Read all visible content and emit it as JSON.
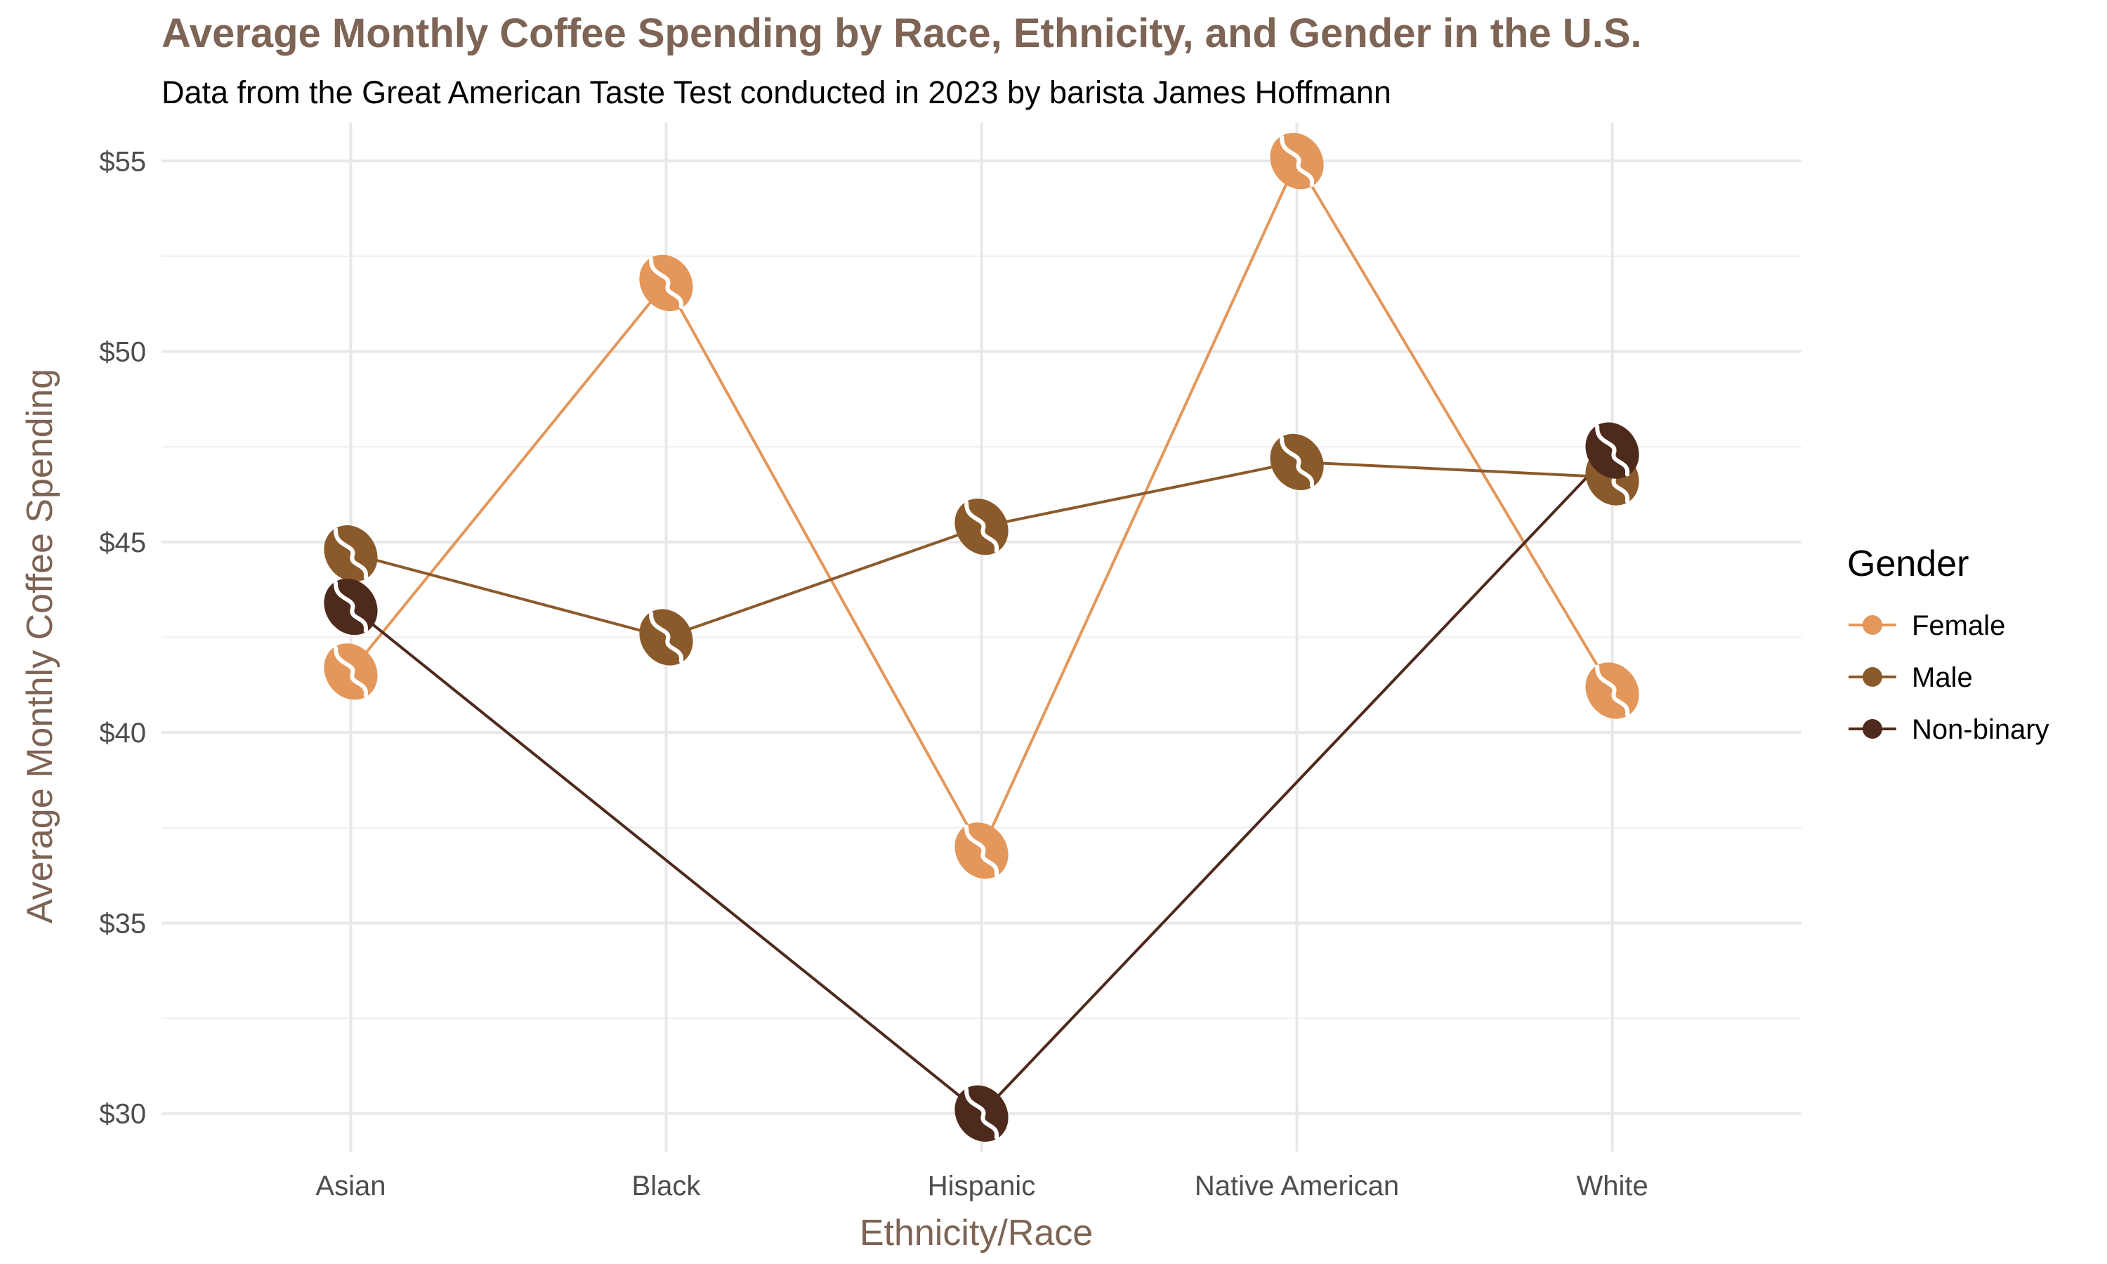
{
  "chart_data": {
    "type": "line",
    "title": "Average Monthly Coffee Spending by Race, Ethnicity, and Gender in the U.S.",
    "subtitle": "Data from the Great American Taste Test conducted in 2023 by barista James Hoffmann",
    "xlabel": "Ethnicity/Race",
    "ylabel": "Average Monthly Coffee Spending",
    "categories": [
      "Asian",
      "Black",
      "Hispanic",
      "Native American",
      "White"
    ],
    "ylim": [
      29,
      56
    ],
    "yticks": [
      30,
      35,
      40,
      45,
      50,
      55
    ],
    "ytick_labels": [
      "$30",
      "$35",
      "$40",
      "$45",
      "$50",
      "$55"
    ],
    "grid": true,
    "legend": {
      "title": "Gender",
      "position": "right"
    },
    "marker": "coffee-bean",
    "series": [
      {
        "name": "Female",
        "color": "#e3975a",
        "values": [
          41.6,
          51.8,
          36.9,
          55.0,
          41.1
        ]
      },
      {
        "name": "Male",
        "color": "#8b5a2b",
        "values": [
          44.7,
          42.5,
          45.4,
          47.1,
          46.7
        ]
      },
      {
        "name": "Non-binary",
        "color": "#4e2a1c",
        "values": [
          43.3,
          null,
          30.0,
          null,
          47.4
        ]
      }
    ]
  }
}
